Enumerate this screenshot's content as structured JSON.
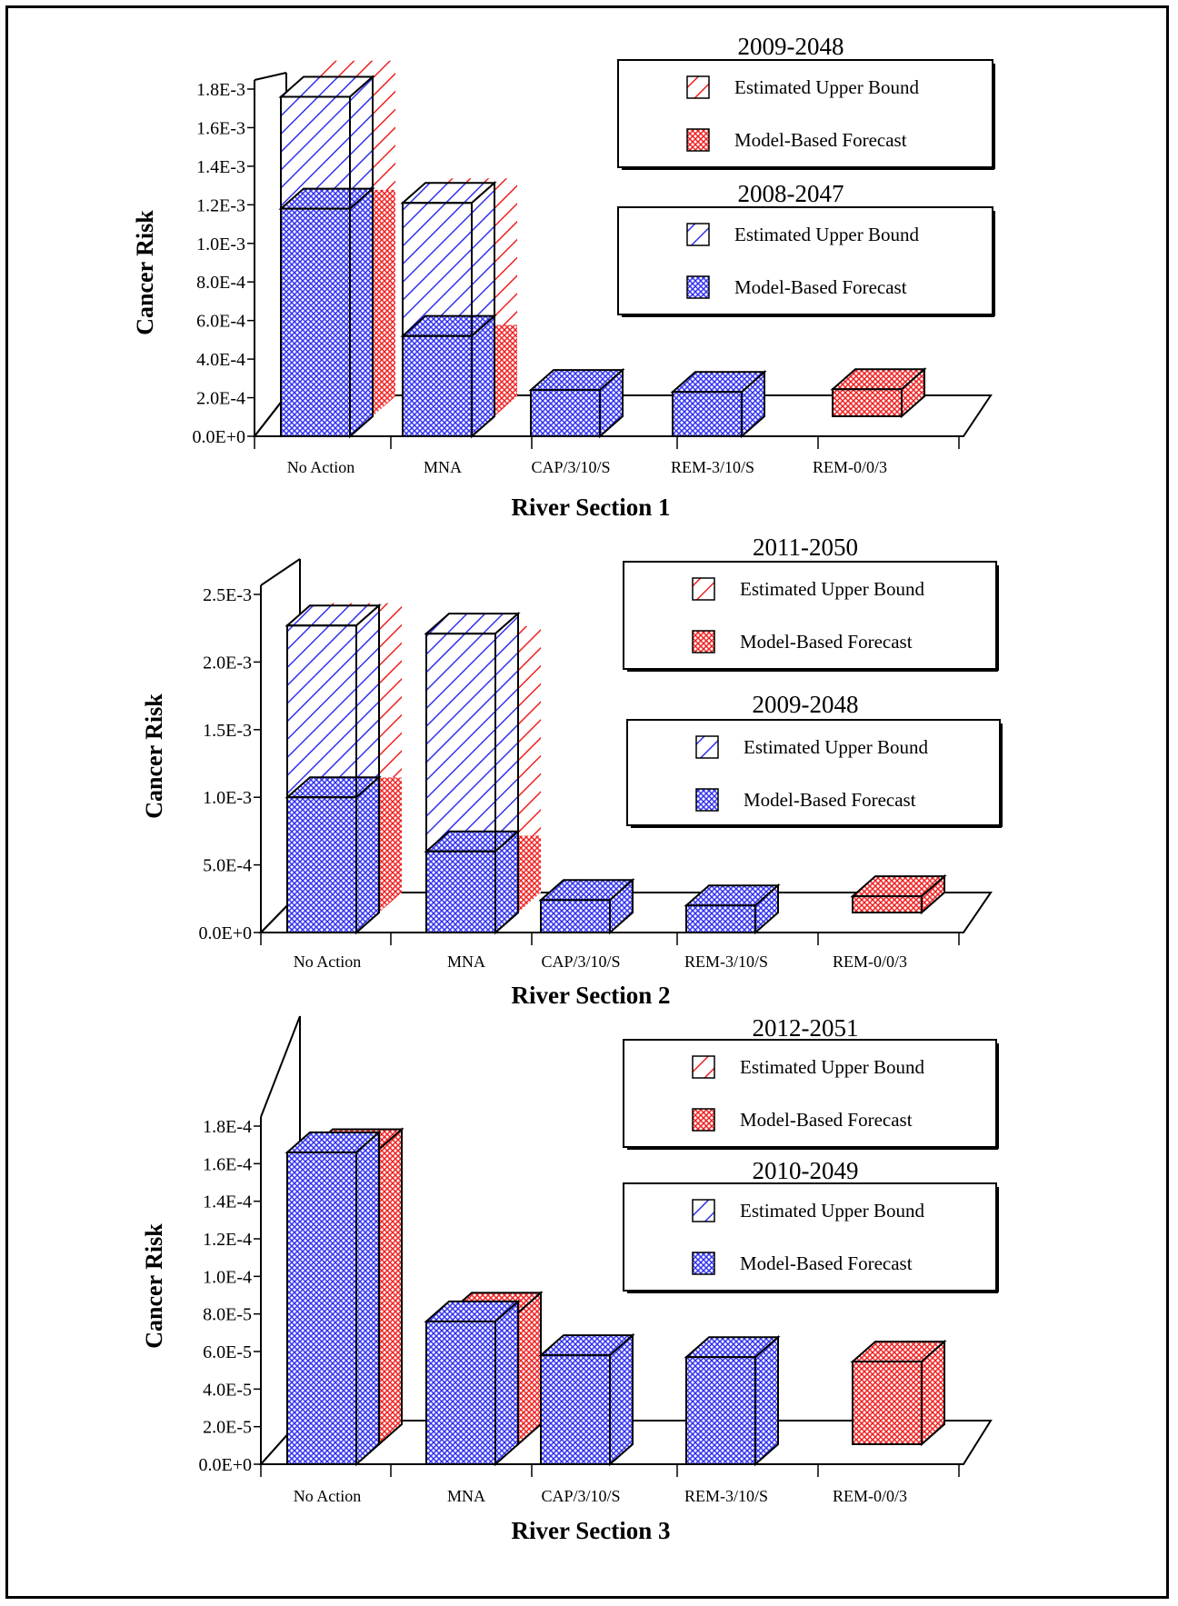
{
  "colors": {
    "series_a": "#3333ee",
    "series_b": "#ee2222",
    "axis": "#000000",
    "background": "#ffffff"
  },
  "chart_data": [
    {
      "type": "bar",
      "title": "River Section 1",
      "xlabel": "River Section 1",
      "ylabel": "Cancer Risk",
      "categories": [
        "No Action",
        "MNA",
        "CAP/3/10/S",
        "REM-3/10/S",
        "REM-0/0/3"
      ],
      "ylim": [
        0,
        0.0018
      ],
      "yticks": [
        0,
        0.0002,
        0.0004,
        0.0006,
        0.0008,
        0.001,
        0.0012,
        0.0014,
        0.0016,
        0.0018
      ],
      "ytick_labels": [
        "0.0E+0",
        "2.0E-4",
        "4.0E-4",
        "6.0E-4",
        "8.0E-4",
        "1.0E-3",
        "1.2E-3",
        "1.4E-3",
        "1.6E-3",
        "1.8E-3"
      ],
      "legend_placement": "top-right",
      "legend_groups": [
        {
          "period": "2009-2048",
          "color": "series_b",
          "entries": [
            "Estimated Upper Bound",
            "Model-Based Forecast"
          ]
        },
        {
          "period": "2008-2047",
          "color": "series_a",
          "entries": [
            "Estimated Upper Bound",
            "Model-Based Forecast"
          ]
        }
      ],
      "series": [
        {
          "name": "2008-2047 Model-Based Forecast",
          "color": "series_a",
          "pattern": "cross",
          "values": [
            0.00118,
            0.00052,
            0.00024,
            0.00023,
            null
          ]
        },
        {
          "name": "2008-2047 Estimated Upper Bound",
          "color": "series_a",
          "pattern": "diag",
          "values": [
            0.00176,
            0.00121,
            null,
            null,
            null
          ]
        },
        {
          "name": "2009-2048 Model-Based Forecast",
          "color": "series_b",
          "pattern": "cross",
          "values": [
            0.00107,
            0.00037,
            null,
            null,
            0.00014
          ]
        },
        {
          "name": "2009-2048 Estimated Upper Bound",
          "color": "series_b",
          "pattern": "diag",
          "values": [
            0.00174,
            0.00113,
            null,
            null,
            null
          ]
        }
      ]
    },
    {
      "type": "bar",
      "title": "River Section 2",
      "xlabel": "River Section 2",
      "ylabel": "Cancer Risk",
      "categories": [
        "No Action",
        "MNA",
        "CAP/3/10/S",
        "REM-3/10/S",
        "REM-0/0/3"
      ],
      "ylim": [
        0,
        0.0025
      ],
      "yticks": [
        0,
        0.0005,
        0.001,
        0.0015,
        0.002,
        0.0025
      ],
      "ytick_labels": [
        "0.0E+0",
        "5.0E-4",
        "1.0E-3",
        "1.5E-3",
        "2.0E-3",
        "2.5E-3"
      ],
      "legend_placement": "top-right",
      "legend_groups": [
        {
          "period": "2011-2050",
          "color": "series_b",
          "entries": [
            "Estimated Upper Bound",
            "Model-Based Forecast"
          ]
        },
        {
          "period": "2009-2048",
          "color": "series_a",
          "entries": [
            "Estimated Upper Bound",
            "Model-Based Forecast"
          ]
        }
      ],
      "series": [
        {
          "name": "2009-2048 Model-Based Forecast",
          "color": "series_a",
          "pattern": "cross",
          "values": [
            0.001,
            0.0006,
            0.00024,
            0.0002,
            null
          ]
        },
        {
          "name": "2009-2048 Estimated Upper Bound",
          "color": "series_a",
          "pattern": "diag",
          "values": [
            0.00227,
            0.00221,
            null,
            null,
            null
          ]
        },
        {
          "name": "2011-2050 Model-Based Forecast",
          "color": "series_b",
          "pattern": "cross",
          "values": [
            0.00085,
            0.00042,
            null,
            null,
            0.00012
          ]
        },
        {
          "name": "2011-2050 Estimated Upper Bound",
          "color": "series_b",
          "pattern": "diag",
          "values": [
            0.00214,
            0.00197,
            null,
            null,
            null
          ]
        }
      ]
    },
    {
      "type": "bar",
      "title": "River Section 3",
      "xlabel": "River Section 3",
      "ylabel": "Cancer Risk",
      "categories": [
        "No Action",
        "MNA",
        "CAP/3/10/S",
        "REM-3/10/S",
        "REM-0/0/3"
      ],
      "ylim": [
        0,
        0.00018
      ],
      "yticks": [
        0,
        2e-05,
        4e-05,
        6e-05,
        8e-05,
        0.0001,
        0.00012,
        0.00014,
        0.00016,
        0.00018
      ],
      "ytick_labels": [
        "0.0E+0",
        "2.0E-5",
        "4.0E-5",
        "6.0E-5",
        "8.0E-5",
        "1.0E-4",
        "1.2E-4",
        "1.4E-4",
        "1.6E-4",
        "1.8E-4"
      ],
      "legend_placement": "top-right",
      "legend_groups": [
        {
          "period": "2012-2051",
          "color": "series_b",
          "entries": [
            "Estimated Upper Bound",
            "Model-Based Forecast"
          ]
        },
        {
          "period": "2010-2049",
          "color": "series_a",
          "entries": [
            "Estimated Upper Bound",
            "Model-Based Forecast"
          ]
        }
      ],
      "series": [
        {
          "name": "2010-2049 Model-Based Forecast",
          "color": "series_a",
          "pattern": "cross",
          "values": [
            0.000166,
            7.6e-05,
            5.8e-05,
            5.7e-05,
            null
          ]
        },
        {
          "name": "2010-2049 Estimated Upper Bound",
          "color": "series_a",
          "pattern": "diag",
          "values": [
            null,
            null,
            null,
            null,
            null
          ]
        },
        {
          "name": "2012-2051 Model-Based Forecast",
          "color": "series_b",
          "pattern": "cross",
          "values": [
            0.000157,
            7e-05,
            null,
            null,
            4.4e-05
          ]
        },
        {
          "name": "2012-2051 Estimated Upper Bound",
          "color": "series_b",
          "pattern": "diag",
          "values": [
            null,
            null,
            null,
            null,
            null
          ]
        }
      ]
    }
  ]
}
